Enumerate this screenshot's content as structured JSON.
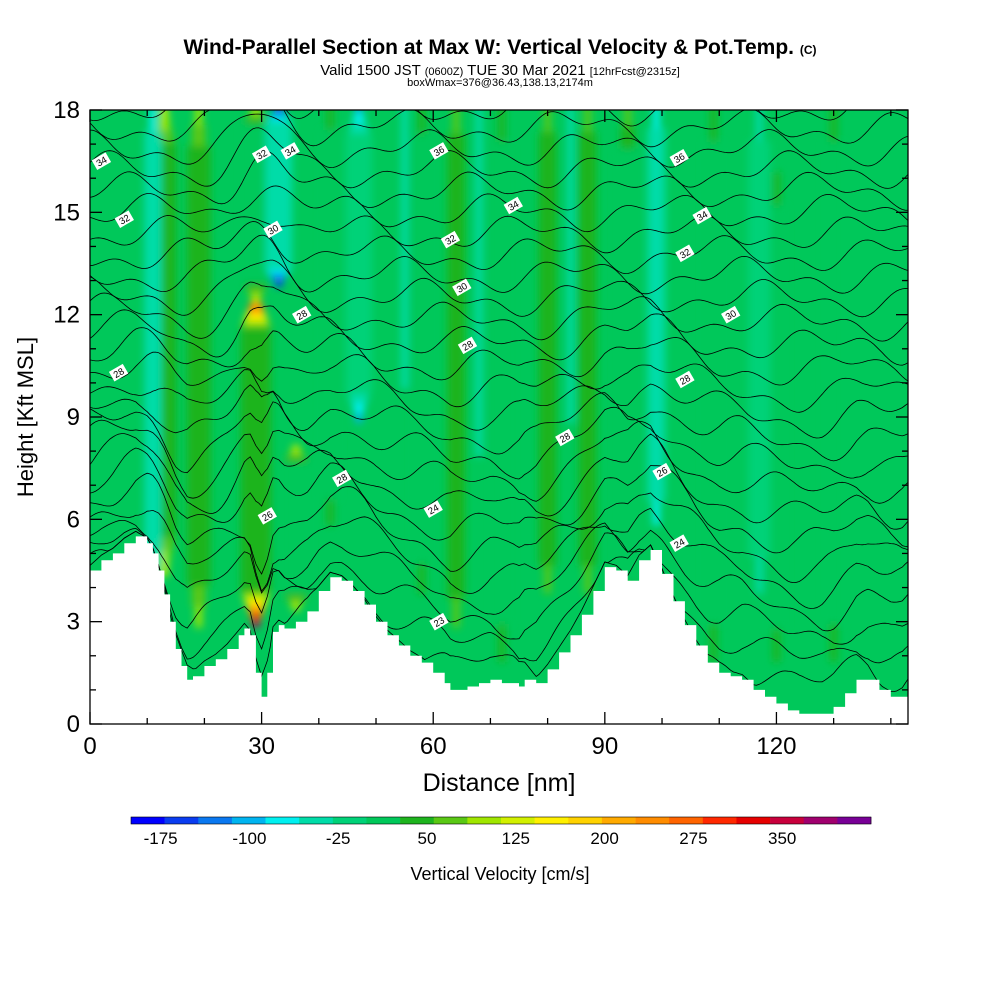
{
  "chart_data": {
    "type": "heatmap",
    "title_main": "Wind-Parallel Section at Max W: Vertical Velocity & Pot.Temp.",
    "title_mark": "(C)",
    "subtitle_valid": "Valid 1500 JST",
    "subtitle_utc": "(0600Z)",
    "subtitle_date": "TUE 30 Mar 2021",
    "subtitle_fcst": "[12hrFcst@2315z]",
    "subtitle_box": "boxWmax=376@36.43,138.13,2174m",
    "xlabel": "Distance [nm]",
    "ylabel": "Height [Kft MSL]",
    "xlim": [
      0,
      143
    ],
    "ylim": [
      0,
      18
    ],
    "x_ticks": [
      0,
      30,
      60,
      90,
      120
    ],
    "y_ticks": [
      0,
      3,
      6,
      9,
      12,
      15,
      18
    ],
    "colorbar_label": "Vertical Velocity [cm/s]",
    "colorbar_range": [
      -200,
      425
    ],
    "colorbar_ticks": [
      -175,
      -100,
      -25,
      50,
      125,
      200,
      275,
      350
    ],
    "colorbar_colors": [
      "#0000ff",
      "#0a3cf0",
      "#0a78f0",
      "#00b4f0",
      "#00f0f0",
      "#00dca8",
      "#00d278",
      "#00c85a",
      "#1eb41e",
      "#5ac814",
      "#a0e600",
      "#d2f000",
      "#fff000",
      "#ffd200",
      "#ffaa00",
      "#ff8c00",
      "#ff6400",
      "#ff2800",
      "#e60000",
      "#c8003c",
      "#a0006e",
      "#780096"
    ],
    "background_velocity_cm_s": 0,
    "updraft_bands": [
      {
        "x": 13,
        "w": 125,
        "top": 18,
        "bottom": 4.5
      },
      {
        "x": 19,
        "w": 85,
        "top": 18,
        "bottom": 3
      },
      {
        "x": 29,
        "w": 380,
        "top": 12.5,
        "bottom": 3
      },
      {
        "x": 29,
        "w": 135,
        "top": 18,
        "bottom": 12.5
      },
      {
        "x": 36,
        "w": 130,
        "top": 8,
        "bottom": 3.5
      },
      {
        "x": 42,
        "w": 55,
        "top": 18,
        "bottom": 6
      },
      {
        "x": 58,
        "w": 55,
        "top": 18,
        "bottom": 4
      },
      {
        "x": 64,
        "w": 60,
        "top": 18,
        "bottom": 3
      },
      {
        "x": 72,
        "w": 50,
        "top": 18,
        "bottom": 2
      },
      {
        "x": 80,
        "w": 60,
        "top": 18,
        "bottom": 4
      },
      {
        "x": 87,
        "w": 60,
        "top": 18,
        "bottom": 4
      },
      {
        "x": 94,
        "w": 80,
        "top": 18,
        "bottom": 3
      },
      {
        "x": 109,
        "w": 50,
        "top": 18,
        "bottom": 2
      },
      {
        "x": 120,
        "w": 50,
        "top": 16,
        "bottom": 2
      },
      {
        "x": 130,
        "w": 50,
        "top": 18,
        "bottom": 2
      }
    ],
    "downdraft_bands": [
      {
        "x": 11,
        "w": -60,
        "top": 18,
        "bottom": 4
      },
      {
        "x": 33,
        "w": -180,
        "top": 18,
        "bottom": 13
      },
      {
        "x": 47,
        "w": -110,
        "top": 18,
        "bottom": 9
      },
      {
        "x": 55,
        "w": -40,
        "top": 18,
        "bottom": 10
      },
      {
        "x": 68,
        "w": -40,
        "top": 18,
        "bottom": 8
      },
      {
        "x": 84,
        "w": -40,
        "top": 18,
        "bottom": 9
      },
      {
        "x": 99,
        "w": -60,
        "top": 18,
        "bottom": 6
      },
      {
        "x": 117,
        "w": -45,
        "top": 18,
        "bottom": 4
      }
    ],
    "terrain_kft": {
      "x": [
        0,
        2,
        4,
        6,
        8,
        10,
        11,
        12,
        13,
        14,
        15,
        16,
        17,
        18,
        20,
        22,
        24,
        26,
        27,
        28,
        29,
        30,
        31,
        32,
        33,
        34,
        36,
        38,
        40,
        42,
        44,
        46,
        48,
        50,
        52,
        54,
        56,
        58,
        60,
        62,
        63,
        64,
        66,
        68,
        70,
        72,
        74,
        75,
        76,
        78,
        80,
        82,
        84,
        86,
        88,
        90,
        92,
        94,
        96,
        98,
        100,
        102,
        104,
        106,
        108,
        110,
        112,
        114,
        116,
        118,
        120,
        122,
        124,
        126,
        128,
        130,
        132,
        134,
        136,
        138,
        140,
        142,
        143
      ],
      "y": [
        4.5,
        4.8,
        5.0,
        5.3,
        5.5,
        5.3,
        5.0,
        4.5,
        3.8,
        3.0,
        2.2,
        1.7,
        1.3,
        1.4,
        1.7,
        1.9,
        2.2,
        2.6,
        2.8,
        2.6,
        1.5,
        0.8,
        1.5,
        2.7,
        2.9,
        2.8,
        3.0,
        3.3,
        3.9,
        4.3,
        4.2,
        3.9,
        3.5,
        3.0,
        2.6,
        2.3,
        2.0,
        1.8,
        1.5,
        1.2,
        1.0,
        1.0,
        1.1,
        1.2,
        1.3,
        1.2,
        1.2,
        1.1,
        1.3,
        1.2,
        1.6,
        2.1,
        2.6,
        3.2,
        3.9,
        4.6,
        4.5,
        4.2,
        4.8,
        5.1,
        4.4,
        3.6,
        2.9,
        2.3,
        1.8,
        1.5,
        1.4,
        1.3,
        1.0,
        0.8,
        0.6,
        0.4,
        0.3,
        0.3,
        0.3,
        0.5,
        0.9,
        1.3,
        1.3,
        1.0,
        0.8,
        0.8,
        1.0
      ]
    },
    "theta_isentropes_C": [
      {
        "value": 23,
        "h": 2.8,
        "label_x": 61,
        "label_y": 3
      },
      {
        "value": 24,
        "h": 5.5,
        "label_x": 60,
        "label_y": 6.3
      },
      {
        "value": 24,
        "h": 5.5,
        "label_x": 103,
        "label_y": 5.3
      },
      {
        "value": 26,
        "h": 7.2,
        "label_x": 31,
        "label_y": 6.1
      },
      {
        "value": 26,
        "h": 7.2,
        "label_x": 100,
        "label_y": 7.4
      },
      {
        "value": 28,
        "h": 8.6,
        "label_x": 44,
        "label_y": 7.2
      },
      {
        "value": 28,
        "h": 8.6,
        "label_x": 83,
        "label_y": 8.4
      },
      {
        "value": 28,
        "h": 10.0,
        "label_x": 5,
        "label_y": 10.3
      },
      {
        "value": 28,
        "h": 10.0,
        "label_x": 66,
        "label_y": 11.1
      },
      {
        "value": 28,
        "h": 10.0,
        "label_x": 104,
        "label_y": 10.1
      },
      {
        "value": 28,
        "h": 11.3,
        "label_x": 37,
        "label_y": 12
      },
      {
        "value": 30,
        "h": 12.2,
        "label_x": 65,
        "label_y": 12.8
      },
      {
        "value": 30,
        "h": 12.2,
        "label_x": 112,
        "label_y": 12
      },
      {
        "value": 30,
        "h": 14.2,
        "label_x": 32,
        "label_y": 14.5
      },
      {
        "value": 32,
        "h": 14.2,
        "label_x": 6,
        "label_y": 14.8
      },
      {
        "value": 32,
        "h": 14.2,
        "label_x": 63,
        "label_y": 14.2
      },
      {
        "value": 32,
        "h": 14.2,
        "label_x": 104,
        "label_y": 13.8
      },
      {
        "value": 32,
        "h": 16.2,
        "label_x": 30,
        "label_y": 16.7
      },
      {
        "value": 34,
        "h": 16.2,
        "label_x": 2,
        "label_y": 16.5
      },
      {
        "value": 34,
        "h": 16.2,
        "label_x": 35,
        "label_y": 16.8
      },
      {
        "value": 34,
        "h": 16.2,
        "label_x": 74,
        "label_y": 15.2
      },
      {
        "value": 34,
        "h": 16.2,
        "label_x": 107,
        "label_y": 14.9
      },
      {
        "value": 36,
        "h": 17.0,
        "label_x": 61,
        "label_y": 16.8
      },
      {
        "value": 36,
        "h": 17.0,
        "label_x": 103,
        "label_y": 16.6
      }
    ],
    "grid": false,
    "legend": "bottom colorbar"
  }
}
